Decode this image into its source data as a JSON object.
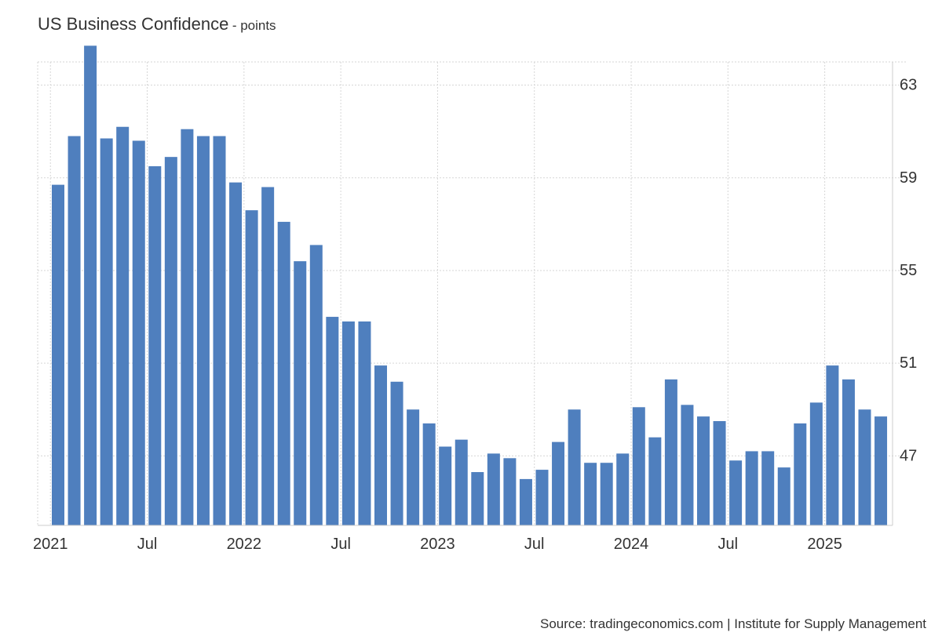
{
  "title": {
    "main": "US Business Confidence",
    "subtitle": "- points"
  },
  "source": "Source: tradingeconomics.com | Institute for Supply Management",
  "colors": {
    "bar": "#4f7fbe",
    "grid": "#d6d6d6",
    "axis": "#cccccc",
    "text": "#333333"
  },
  "chart_data": {
    "type": "bar",
    "title": "US Business Confidence",
    "ylabel": "points",
    "xlabel": "",
    "ylim": [
      44,
      64
    ],
    "yticks": [
      47,
      51,
      55,
      59,
      63
    ],
    "grid": true,
    "y_axis_position": "right",
    "x_tick_labels": [
      {
        "index": 0,
        "label": "2021"
      },
      {
        "index": 6,
        "label": "Jul"
      },
      {
        "index": 12,
        "label": "2022"
      },
      {
        "index": 18,
        "label": "Jul"
      },
      {
        "index": 24,
        "label": "2023"
      },
      {
        "index": 30,
        "label": "Jul"
      },
      {
        "index": 36,
        "label": "2024"
      },
      {
        "index": 42,
        "label": "Jul"
      },
      {
        "index": 48,
        "label": "2025"
      }
    ],
    "categories": [
      "Jan 2021",
      "Feb 2021",
      "Mar 2021",
      "Apr 2021",
      "May 2021",
      "Jun 2021",
      "Jul 2021",
      "Aug 2021",
      "Sep 2021",
      "Oct 2021",
      "Nov 2021",
      "Dec 2021",
      "Jan 2022",
      "Feb 2022",
      "Mar 2022",
      "Apr 2022",
      "May 2022",
      "Jun 2022",
      "Jul 2022",
      "Aug 2022",
      "Sep 2022",
      "Oct 2022",
      "Nov 2022",
      "Dec 2022",
      "Jan 2023",
      "Feb 2023",
      "Mar 2023",
      "Apr 2023",
      "May 2023",
      "Jun 2023",
      "Jul 2023",
      "Aug 2023",
      "Sep 2023",
      "Oct 2023",
      "Nov 2023",
      "Dec 2023",
      "Jan 2024",
      "Feb 2024",
      "Mar 2024",
      "Apr 2024",
      "May 2024",
      "Jun 2024",
      "Jul 2024",
      "Aug 2024",
      "Sep 2024",
      "Oct 2024",
      "Nov 2024",
      "Dec 2024",
      "Jan 2025",
      "Feb 2025",
      "Mar 2025",
      "Apr 2025"
    ],
    "values": [
      58.7,
      60.8,
      64.7,
      60.7,
      61.2,
      60.6,
      59.5,
      59.9,
      61.1,
      60.8,
      60.8,
      58.8,
      57.6,
      58.6,
      57.1,
      55.4,
      56.1,
      53.0,
      52.8,
      52.8,
      50.9,
      50.2,
      49.0,
      48.4,
      47.4,
      47.7,
      46.3,
      47.1,
      46.9,
      46.0,
      46.4,
      47.6,
      49.0,
      46.7,
      46.7,
      47.1,
      49.1,
      47.8,
      50.3,
      49.2,
      48.7,
      48.5,
      46.8,
      47.2,
      47.2,
      46.5,
      48.4,
      49.3,
      50.9,
      50.3,
      49.0,
      48.7
    ]
  }
}
